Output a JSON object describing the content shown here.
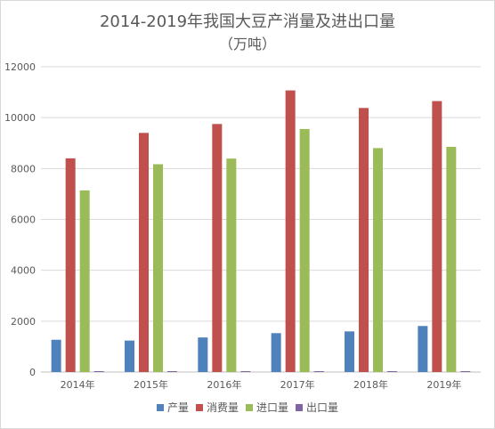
{
  "chart_data": {
    "type": "bar",
    "title": "2014-2019年我国大豆产消量及进出口量",
    "subtitle": "（万吨）",
    "categories": [
      "2014年",
      "2015年",
      "2016年",
      "2017年",
      "2018年",
      "2019年"
    ],
    "ylim": [
      0,
      12000
    ],
    "yticks": [
      0,
      2000,
      4000,
      6000,
      8000,
      10000,
      12000
    ],
    "grid": true,
    "legend_position": "bottom",
    "series": [
      {
        "name": "产量",
        "color": "#4f81bd",
        "values": [
          1269,
          1237,
          1359,
          1528,
          1597,
          1810
        ]
      },
      {
        "name": "消费量",
        "color": "#c0504d",
        "values": [
          8400,
          9400,
          9750,
          11070,
          10380,
          10650
        ]
      },
      {
        "name": "进口量",
        "color": "#9bbb59",
        "values": [
          7140,
          8169,
          8391,
          9553,
          8803,
          8851
        ]
      },
      {
        "name": "出口量",
        "color": "#8064a2",
        "values": [
          21,
          13,
          11,
          11,
          13,
          11
        ]
      }
    ]
  }
}
